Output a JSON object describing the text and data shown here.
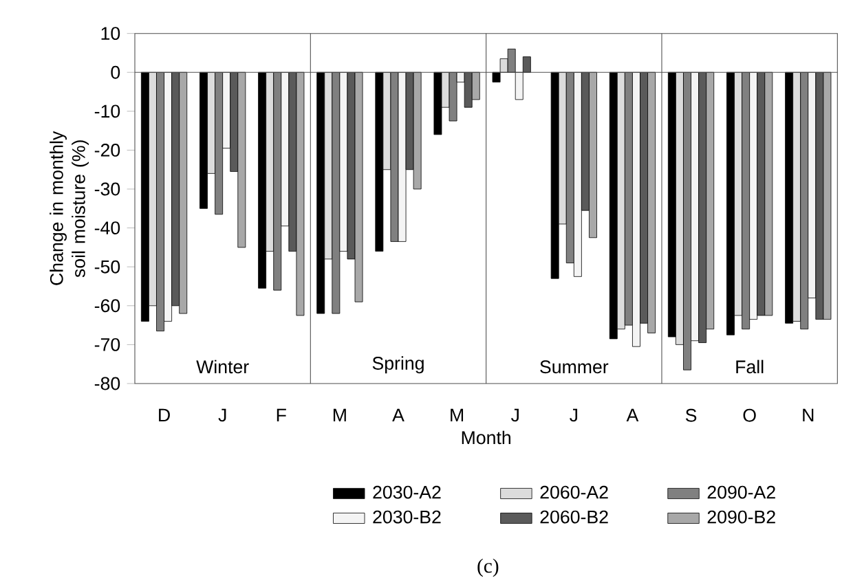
{
  "chart_data": {
    "type": "bar",
    "categories": [
      "D",
      "J",
      "F",
      "M",
      "A",
      "M",
      "J",
      "J",
      "A",
      "S",
      "O",
      "N"
    ],
    "series": [
      {
        "name": "2030-A2",
        "color": "#000000",
        "values": [
          -64,
          -35,
          -55.5,
          -62,
          -46,
          -16,
          -2.5,
          -53,
          -68.5,
          -68,
          -67.5,
          -64.5
        ]
      },
      {
        "name": "2060-A2",
        "color": "#dcdcdc",
        "values": [
          -60,
          -26,
          -46,
          -48,
          -25,
          -9,
          3.5,
          -39,
          -66,
          -70,
          -62.5,
          -64
        ]
      },
      {
        "name": "2090-A2",
        "color": "#808080",
        "values": [
          -66.5,
          -36.5,
          -56,
          -62,
          -43.5,
          -12.5,
          6,
          -49,
          -65,
          -76.5,
          -66,
          -66
        ]
      },
      {
        "name": "2030-B2",
        "color": "#f4f4f4",
        "values": [
          -64,
          -19.5,
          -39.5,
          -46,
          -43.5,
          -2.5,
          -7,
          -52.5,
          -70.5,
          -69,
          -63.5,
          -58
        ]
      },
      {
        "name": "2060-B2",
        "color": "#5a5a5a",
        "values": [
          -60,
          -25.5,
          -46,
          -48,
          -25,
          -9,
          4,
          -35.5,
          -64.5,
          -69.5,
          -62.5,
          -63.5
        ]
      },
      {
        "name": "2090-B2",
        "color": "#a8a8a8",
        "values": [
          -62,
          -45,
          -62.5,
          -59,
          -30,
          -7,
          null,
          -42.5,
          -67,
          -66,
          -62.5,
          -63.5
        ]
      }
    ],
    "xlabel": "Month",
    "ylabel": "Change in monthly soil moisture (%)",
    "ylim": [
      -80,
      10
    ],
    "yticks": [
      -80,
      -70,
      -60,
      -50,
      -40,
      -30,
      -20,
      -10,
      0,
      10
    ],
    "annotations": [
      "Winter",
      "Spring",
      "Summer",
      "Fall"
    ],
    "title": "(c)",
    "legend": "bottom"
  }
}
